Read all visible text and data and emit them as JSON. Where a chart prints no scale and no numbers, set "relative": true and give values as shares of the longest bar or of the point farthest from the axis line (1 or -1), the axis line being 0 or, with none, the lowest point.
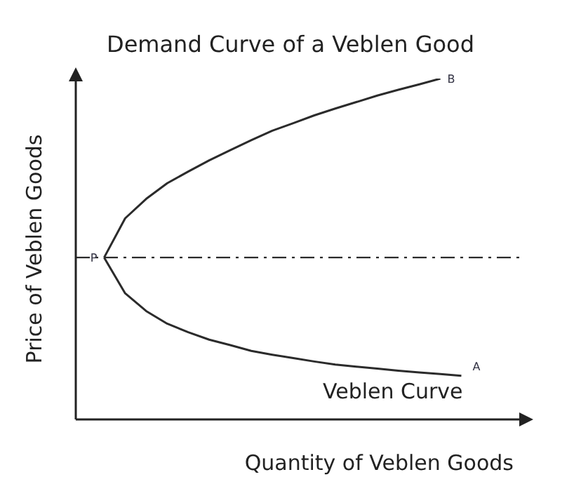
{
  "chart_data": {
    "type": "line",
    "title": "Demand Curve of a Veblen Good",
    "xlabel": "Quantity of Veblen Goods",
    "ylabel": "Price of Veblen Goods",
    "relative": true,
    "marker": "none",
    "line_style": "solid",
    "categories": [
      null,
      null,
      null,
      null,
      null,
      null,
      null,
      null,
      null,
      null,
      null,
      null,
      null,
      null,
      null,
      null,
      null,
      null
    ],
    "series": [
      {
        "color": "#2b2b2b",
        "values": [
          0.475,
          0.59,
          0.647,
          0.693,
          0.727,
          0.76,
          0.79,
          0.819,
          0.847,
          0.869,
          0.892,
          0.912,
          0.931,
          0.95,
          0.967,
          0.983,
          1,
          null
        ]
      },
      {
        "color": "#2b2b2b",
        "values": [
          0.475,
          0.37,
          0.318,
          0.281,
          0.256,
          0.234,
          0.218,
          0.201,
          0.19,
          0.18,
          0.17,
          0.161,
          0.155,
          0.149,
          0.143,
          0.138,
          0.133,
          0.128
        ]
      }
    ],
    "ref_lines": [
      {
        "axis": "y",
        "value": 0.475,
        "color": "#2b2b2b",
        "line_style": "dashdot"
      }
    ],
    "annotations": [
      {
        "text": "P",
        "y": 0.475
      },
      "B",
      "A",
      "Veblen Curve"
    ]
  }
}
